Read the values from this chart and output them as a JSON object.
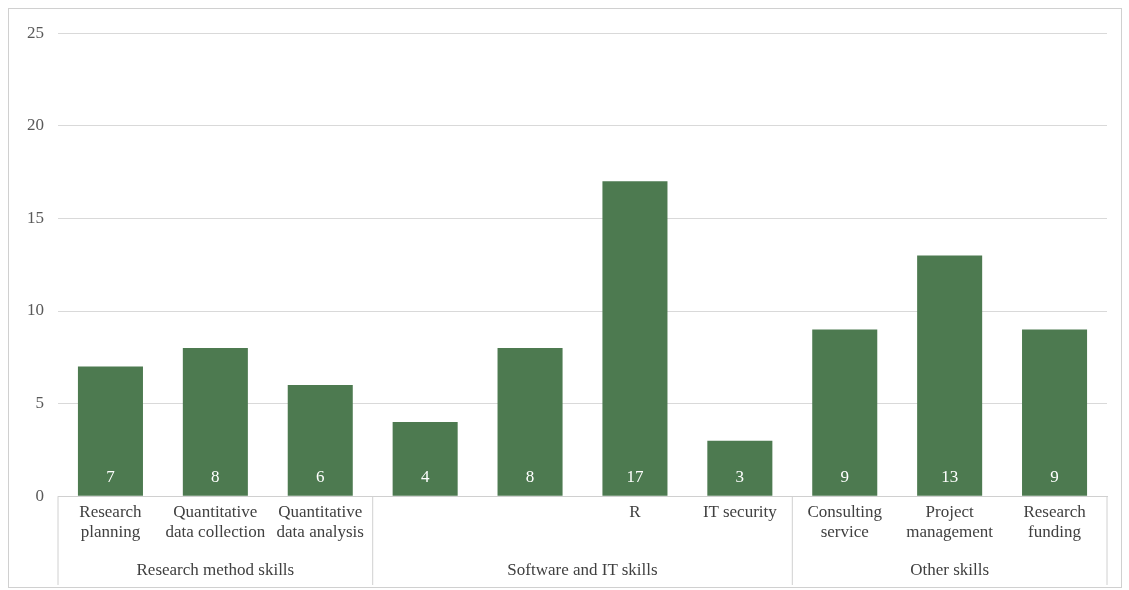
{
  "chart_data": {
    "type": "bar",
    "categories": [
      "Research planning",
      "Quantitative data collection",
      "Quantitative data analysis",
      null,
      null,
      "R",
      "IT security",
      "Consulting service",
      "Project management",
      "Research funding"
    ],
    "values": [
      7,
      8,
      6,
      4,
      8,
      17,
      3,
      9,
      13,
      9
    ],
    "color": "#4d7a50",
    "ylim": [
      0,
      25
    ],
    "yticks": [
      0,
      5,
      10,
      15,
      20,
      25
    ],
    "grid": "y",
    "data_labels": true,
    "annotations": [
      "Research method skills",
      "Software and IT skills",
      "Other skills"
    ]
  }
}
